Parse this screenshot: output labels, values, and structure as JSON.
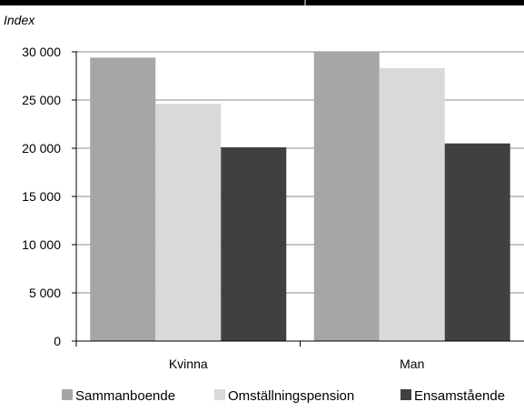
{
  "chart_data": {
    "type": "bar",
    "ylabel": "Index",
    "categories": [
      "Kvinna",
      "Man"
    ],
    "series": [
      {
        "name": "Sammanboende",
        "values": [
          29400,
          30000
        ],
        "color": "#a6a6a6"
      },
      {
        "name": "Omställningspension",
        "values": [
          24600,
          28300
        ],
        "color": "#d9d9d9"
      },
      {
        "name": "Ensamstående",
        "values": [
          20100,
          20500
        ],
        "color": "#404040"
      }
    ],
    "ylim": [
      0,
      30000
    ],
    "yticks": [
      0,
      5000,
      10000,
      15000,
      20000,
      25000,
      30000
    ],
    "ytick_labels": [
      "0",
      "5 000",
      "10 000",
      "15 000",
      "20 000",
      "25 000",
      "30 000"
    ],
    "grid": true,
    "legend": "bottom",
    "top_bar_color": "#000000",
    "grid_color": "#8c8c8c"
  }
}
